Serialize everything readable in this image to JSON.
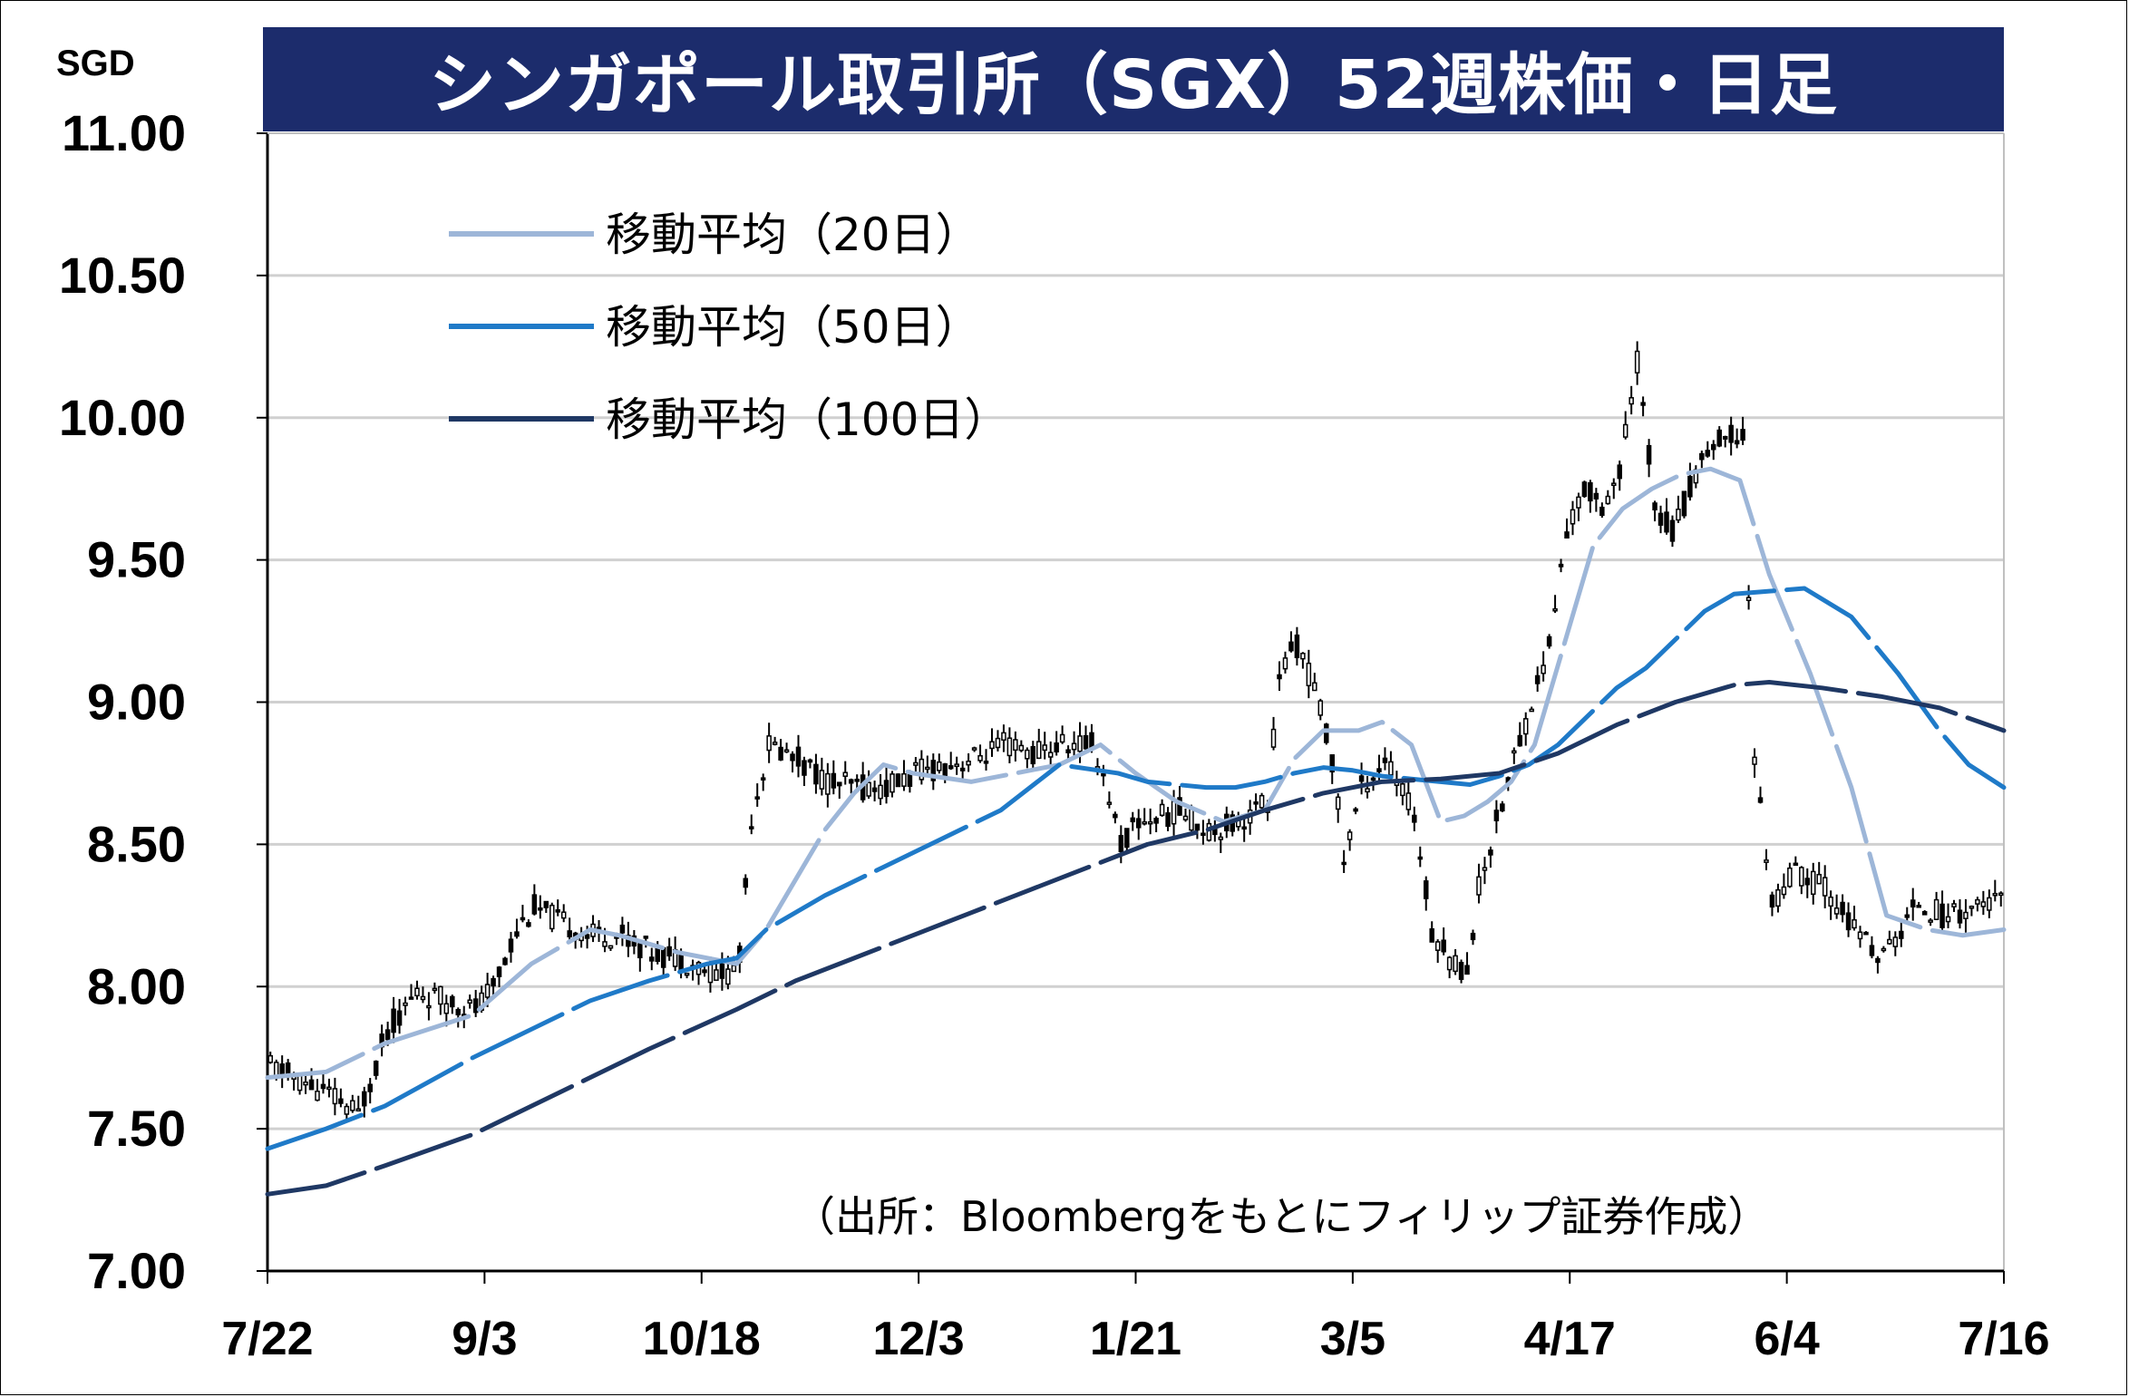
{
  "chart_data": {
    "type": "candlestick",
    "title": "シンガポール取引所（SGX）52週株価・日足",
    "ylabel": "SGD",
    "ylim": [
      7.0,
      11.0
    ],
    "yticks": [
      "11.00",
      "10.50",
      "10.00",
      "9.50",
      "9.00",
      "8.50",
      "8.00",
      "7.50",
      "7.00"
    ],
    "xticks": [
      "7/22",
      "9/3",
      "10/18",
      "12/3",
      "1/21",
      "3/5",
      "4/17",
      "6/4",
      "7/16"
    ],
    "grid": "horizontal",
    "legend_position": "top-left",
    "source": "（出所：Bloombergをもとにフィリップ証券作成）",
    "price_keypoints": [
      [
        0,
        7.72
      ],
      [
        10,
        7.62
      ],
      [
        15,
        7.55
      ],
      [
        20,
        7.85
      ],
      [
        25,
        7.98
      ],
      [
        30,
        7.95
      ],
      [
        35,
        7.92
      ],
      [
        38,
        8.0
      ],
      [
        42,
        8.2
      ],
      [
        45,
        8.28
      ],
      [
        50,
        8.22
      ],
      [
        55,
        8.18
      ],
      [
        60,
        8.18
      ],
      [
        65,
        8.12
      ],
      [
        70,
        8.1
      ],
      [
        75,
        8.05
      ],
      [
        78,
        8.05
      ],
      [
        80,
        8.1
      ],
      [
        82,
        8.6
      ],
      [
        85,
        8.85
      ],
      [
        90,
        8.8
      ],
      [
        95,
        8.72
      ],
      [
        100,
        8.7
      ],
      [
        105,
        8.7
      ],
      [
        110,
        8.75
      ],
      [
        115,
        8.78
      ],
      [
        120,
        8.8
      ],
      [
        125,
        8.85
      ],
      [
        130,
        8.82
      ],
      [
        135,
        8.85
      ],
      [
        140,
        8.85
      ],
      [
        142,
        8.75
      ],
      [
        145,
        8.5
      ],
      [
        148,
        8.58
      ],
      [
        152,
        8.6
      ],
      [
        155,
        8.62
      ],
      [
        160,
        8.55
      ],
      [
        165,
        8.58
      ],
      [
        170,
        8.65
      ],
      [
        172,
        9.1
      ],
      [
        175,
        9.2
      ],
      [
        178,
        9.05
      ],
      [
        181,
        8.8
      ],
      [
        183,
        8.45
      ],
      [
        186,
        8.7
      ],
      [
        190,
        8.8
      ],
      [
        195,
        8.6
      ],
      [
        198,
        8.2
      ],
      [
        201,
        8.1
      ],
      [
        204,
        8.05
      ],
      [
        206,
        8.35
      ],
      [
        208,
        8.5
      ],
      [
        212,
        8.8
      ],
      [
        215,
        9.0
      ],
      [
        218,
        9.2
      ],
      [
        221,
        9.6
      ],
      [
        224,
        9.75
      ],
      [
        227,
        9.7
      ],
      [
        230,
        9.8
      ],
      [
        233,
        10.2
      ],
      [
        236,
        9.7
      ],
      [
        239,
        9.6
      ],
      [
        242,
        9.75
      ],
      [
        245,
        9.9
      ],
      [
        248,
        9.92
      ],
      [
        251,
        9.95
      ],
      [
        253,
        8.8
      ],
      [
        256,
        8.3
      ],
      [
        260,
        8.4
      ],
      [
        265,
        8.35
      ],
      [
        270,
        8.2
      ],
      [
        275,
        8.1
      ],
      [
        278,
        8.2
      ],
      [
        281,
        8.3
      ],
      [
        285,
        8.25
      ],
      [
        290,
        8.28
      ],
      [
        296,
        8.3
      ]
    ],
    "series": [
      {
        "name": "移動平均（20日）",
        "color": "#9db6d8",
        "x": [
          0,
          10,
          20,
          35,
          45,
          55,
          60,
          70,
          80,
          85,
          95,
          100,
          105,
          110,
          120,
          135,
          142,
          148,
          155,
          163,
          170,
          175,
          180,
          186,
          190,
          195,
          200,
          204,
          208,
          212,
          216,
          221,
          226,
          231,
          236,
          241,
          246,
          251,
          256,
          259,
          263,
          270,
          276,
          283,
          289,
          296
        ],
        "values": [
          7.68,
          7.7,
          7.8,
          7.9,
          8.08,
          8.2,
          8.18,
          8.12,
          8.08,
          8.2,
          8.55,
          8.68,
          8.78,
          8.75,
          8.72,
          8.78,
          8.85,
          8.75,
          8.65,
          8.58,
          8.62,
          8.8,
          8.9,
          8.9,
          8.93,
          8.85,
          8.58,
          8.6,
          8.65,
          8.72,
          8.85,
          9.2,
          9.55,
          9.68,
          9.75,
          9.8,
          9.82,
          9.78,
          9.45,
          9.3,
          9.1,
          8.7,
          8.25,
          8.2,
          8.18,
          8.2
        ]
      },
      {
        "name": "移動平均（50日）",
        "color": "#1f7ac8",
        "x": [
          0,
          10,
          20,
          35,
          45,
          55,
          65,
          75,
          80,
          85,
          95,
          105,
          115,
          125,
          135,
          145,
          150,
          160,
          165,
          170,
          175,
          180,
          185,
          190,
          195,
          200,
          205,
          210,
          215,
          220,
          225,
          230,
          235,
          240,
          245,
          250,
          256,
          262,
          270,
          278,
          285,
          290,
          296
        ],
        "values": [
          7.43,
          7.5,
          7.58,
          7.75,
          7.85,
          7.95,
          8.02,
          8.08,
          8.1,
          8.2,
          8.32,
          8.42,
          8.52,
          8.62,
          8.78,
          8.75,
          8.72,
          8.7,
          8.7,
          8.72,
          8.75,
          8.77,
          8.76,
          8.74,
          8.73,
          8.72,
          8.71,
          8.74,
          8.78,
          8.85,
          8.95,
          9.05,
          9.12,
          9.22,
          9.32,
          9.38,
          9.39,
          9.4,
          9.3,
          9.1,
          8.9,
          8.78,
          8.7
        ]
      },
      {
        "name": "移動平均（100日）",
        "color": "#1f3864",
        "x": [
          0,
          10,
          20,
          35,
          50,
          65,
          80,
          90,
          100,
          110,
          120,
          130,
          140,
          150,
          160,
          170,
          180,
          190,
          200,
          210,
          220,
          230,
          240,
          250,
          256,
          265,
          275,
          285,
          296
        ],
        "values": [
          7.27,
          7.3,
          7.37,
          7.48,
          7.63,
          7.78,
          7.92,
          8.02,
          8.1,
          8.18,
          8.26,
          8.34,
          8.42,
          8.5,
          8.55,
          8.62,
          8.68,
          8.72,
          8.73,
          8.75,
          8.82,
          8.92,
          9.0,
          9.06,
          9.07,
          9.05,
          9.02,
          8.98,
          8.9
        ]
      }
    ]
  }
}
